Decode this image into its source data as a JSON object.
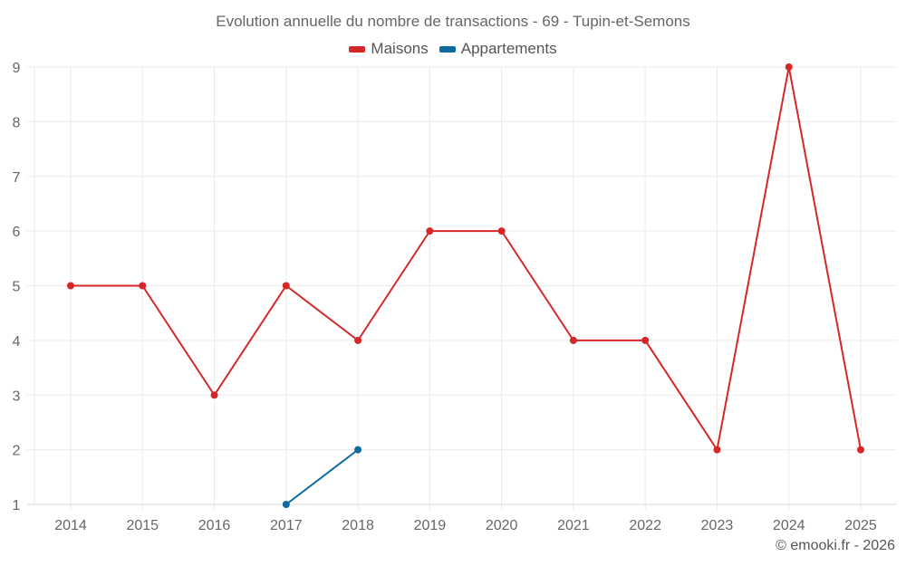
{
  "chart_data": {
    "type": "line",
    "title": "Evolution annuelle du nombre de transactions - 69 - Tupin-et-Semons",
    "xlabel": "",
    "ylabel": "",
    "categories": [
      "2014",
      "2015",
      "2016",
      "2017",
      "2018",
      "2019",
      "2020",
      "2021",
      "2022",
      "2023",
      "2024",
      "2025"
    ],
    "series": [
      {
        "name": "Maisons",
        "color": "#d62728",
        "values": [
          5,
          5,
          3,
          5,
          4,
          6,
          6,
          4,
          4,
          2,
          9,
          2
        ]
      },
      {
        "name": "Appartements",
        "color": "#0f6aa0",
        "values": [
          null,
          null,
          null,
          1,
          2,
          null,
          null,
          null,
          null,
          null,
          null,
          null
        ]
      }
    ],
    "ylim": [
      1,
      9
    ],
    "yticks": [
      1,
      2,
      3,
      4,
      5,
      6,
      7,
      8,
      9
    ],
    "grid": true,
    "legend_position": "top"
  },
  "credit": "© emooki.fr - 2026"
}
